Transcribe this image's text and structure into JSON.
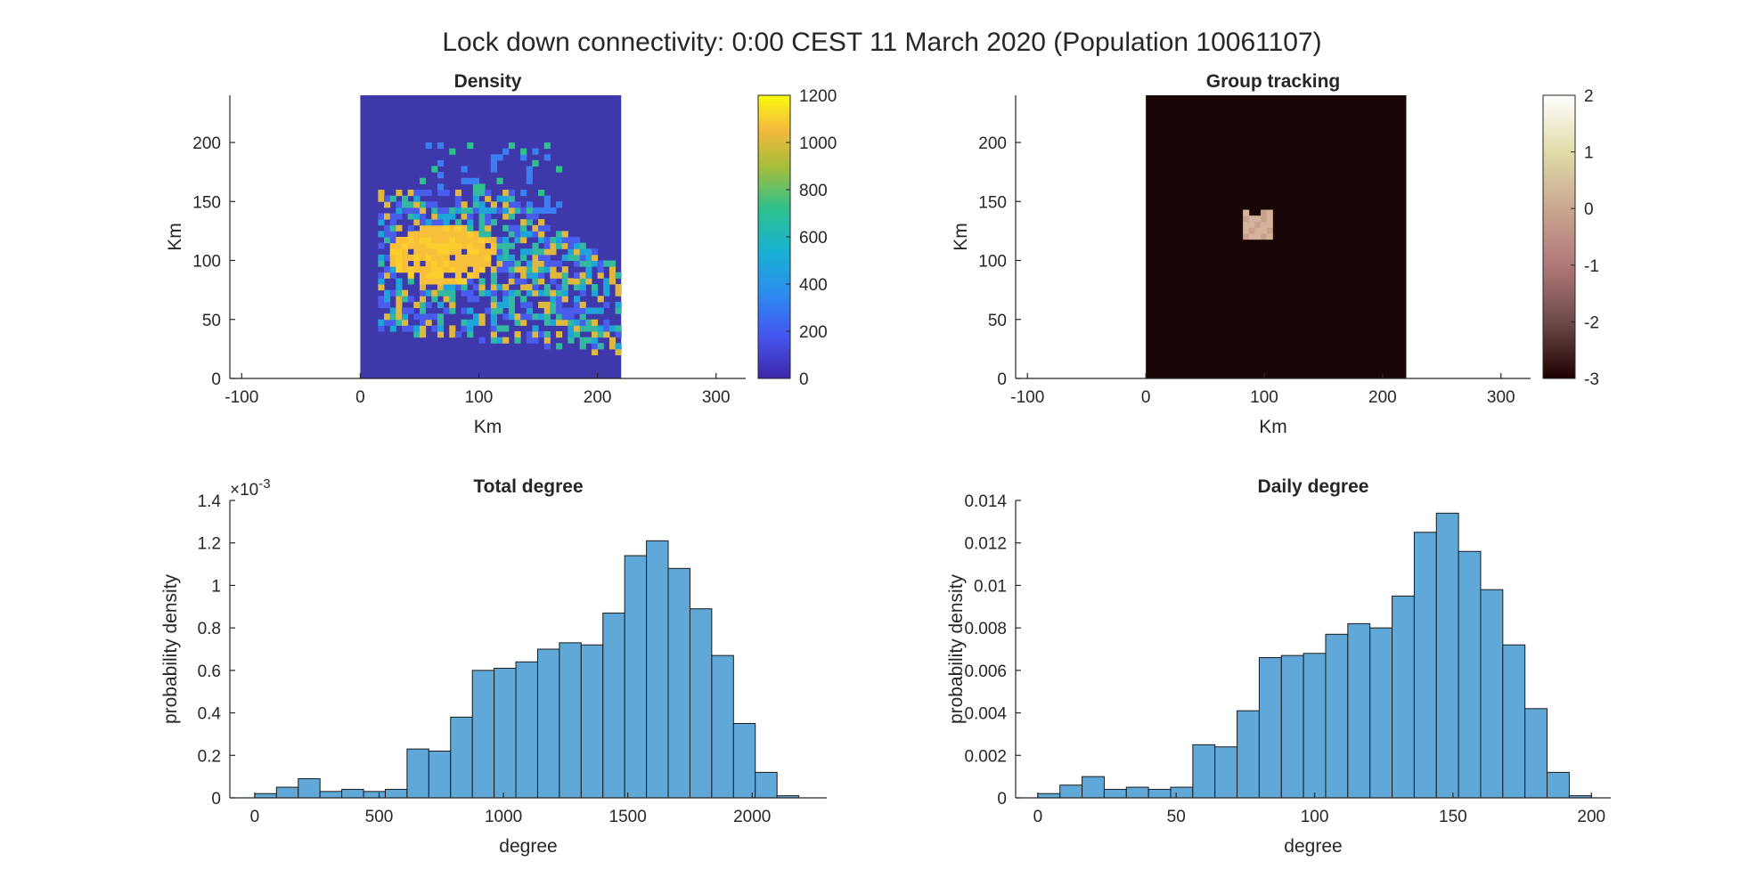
{
  "figure": {
    "title": "Lock down connectivity: 0:00 CEST 11 March 2020 (Population 10061107)"
  },
  "chart_data": [
    {
      "id": "density",
      "type": "heatmap",
      "title": "Density",
      "xlabel": "Km",
      "ylabel": "Km",
      "xlim": [
        -110,
        325
      ],
      "ylim": [
        0,
        240
      ],
      "xticks": [
        -100,
        0,
        100,
        200,
        300
      ],
      "yticks": [
        0,
        50,
        100,
        150,
        200
      ],
      "image_extent": {
        "x": [
          0,
          220
        ],
        "y": [
          0,
          240
        ]
      },
      "colormap": "parula",
      "background_color": "#3e38aa",
      "colorbar": {
        "min": 0,
        "max": 1200,
        "ticks": [
          0,
          200,
          400,
          600,
          800,
          1000,
          1200
        ]
      }
    },
    {
      "id": "group-tracking",
      "type": "heatmap",
      "title": "Group tracking",
      "xlabel": "Km",
      "ylabel": "Km",
      "xlim": [
        -110,
        325
      ],
      "ylim": [
        0,
        240
      ],
      "xticks": [
        -100,
        0,
        100,
        200,
        300
      ],
      "yticks": [
        0,
        50,
        100,
        150,
        200
      ],
      "image_extent": {
        "x": [
          0,
          220
        ],
        "y": [
          0,
          240
        ]
      },
      "colormap": "pink-like",
      "background_color": "#1a0606",
      "highlight_color": "#d3b39c",
      "colorbar": {
        "min": -3,
        "max": 2,
        "ticks": [
          -3,
          -2,
          -1,
          0,
          1,
          2
        ]
      }
    },
    {
      "id": "total-degree",
      "type": "bar",
      "title": "Total degree",
      "xlabel": "degree",
      "ylabel": "probability density",
      "exponent_label": "×10",
      "exponent_power": "-3",
      "xlim": [
        -100,
        2300
      ],
      "ylim": [
        0,
        1.4
      ],
      "xticks": [
        0,
        500,
        1000,
        1500,
        2000
      ],
      "yticks": [
        0,
        0.2,
        0.4,
        0.6,
        0.8,
        1,
        1.2,
        1.4
      ],
      "bin_start": 0,
      "bin_width": 87.5,
      "values": [
        0.02,
        0.05,
        0.09,
        0.03,
        0.04,
        0.03,
        0.04,
        0.23,
        0.22,
        0.38,
        0.6,
        0.61,
        0.64,
        0.7,
        0.73,
        0.72,
        0.87,
        1.14,
        1.21,
        1.08,
        0.89,
        0.67,
        0.35,
        0.12,
        0.01
      ],
      "bar_color": "#5fa8d8"
    },
    {
      "id": "daily-degree",
      "type": "bar",
      "title": "Daily degree",
      "xlabel": "degree",
      "ylabel": "probability density",
      "xlim": [
        -8,
        207
      ],
      "ylim": [
        0,
        0.014
      ],
      "xticks": [
        0,
        50,
        100,
        150,
        200
      ],
      "yticks": [
        0,
        0.002,
        0.004,
        0.006,
        0.008,
        0.01,
        0.012,
        0.014
      ],
      "bin_start": 0,
      "bin_width": 8,
      "values": [
        0.0002,
        0.0006,
        0.001,
        0.0004,
        0.0005,
        0.0004,
        0.0005,
        0.0025,
        0.0024,
        0.0041,
        0.0066,
        0.0067,
        0.0068,
        0.0077,
        0.0082,
        0.008,
        0.0095,
        0.0125,
        0.0134,
        0.0116,
        0.0098,
        0.0072,
        0.0042,
        0.0012,
        0.0001
      ],
      "bar_color": "#5fa8d8"
    }
  ]
}
